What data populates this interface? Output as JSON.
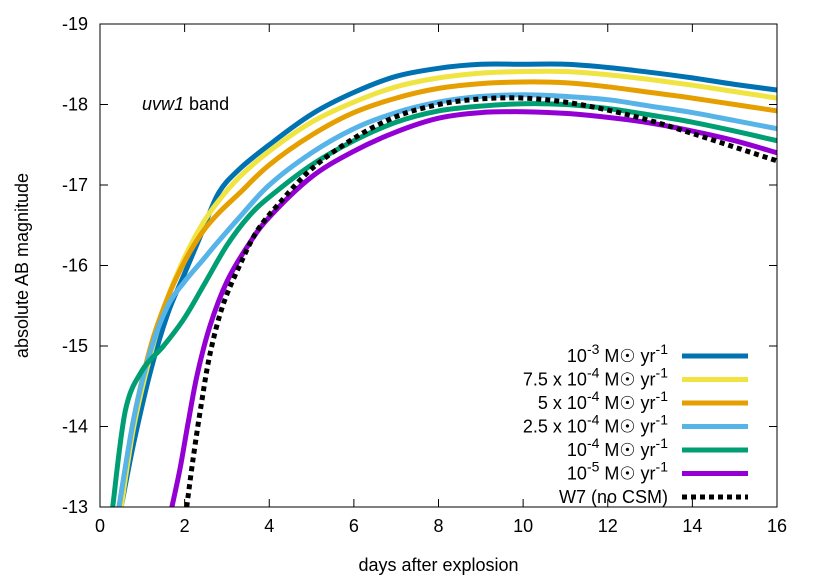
{
  "chart_data": {
    "type": "line",
    "title": "",
    "xlabel": "days after explosion",
    "ylabel": "absolute AB magnitude",
    "xlim": [
      0,
      16
    ],
    "ylim": [
      -13,
      -19
    ],
    "y_inverted": true,
    "grid": false,
    "legend_position": "bottom-right",
    "x_ticks": [
      0,
      2,
      4,
      6,
      8,
      10,
      12,
      14,
      16
    ],
    "y_ticks": [
      -13,
      -14,
      -15,
      -16,
      -17,
      -18,
      -19
    ],
    "annotation": {
      "italic": "uvw1",
      "text": " band"
    },
    "series": [
      {
        "label": {
          "pre": "",
          "mant": "10",
          "exp": "-3",
          "unit_pre": " M",
          "unit_sym": "☉",
          "unit_post": " yr",
          "unit_exp": "-1"
        },
        "color": "#0072b2",
        "dash": "solid",
        "x": [
          0.5,
          0.8,
          1.2,
          1.6,
          2.0,
          2.4,
          2.8,
          3.3,
          4.0,
          5.0,
          6.0,
          7.0,
          8.0,
          9.0,
          10.0,
          11.0,
          12.0,
          13.0,
          14.0,
          15.0,
          16.0
        ],
        "y": [
          -13.0,
          -13.8,
          -14.7,
          -15.4,
          -15.9,
          -16.4,
          -16.9,
          -17.2,
          -17.5,
          -17.88,
          -18.15,
          -18.35,
          -18.45,
          -18.5,
          -18.5,
          -18.5,
          -18.46,
          -18.4,
          -18.33,
          -18.25,
          -18.18
        ]
      },
      {
        "label": {
          "pre": "7.5 x ",
          "mant": "10",
          "exp": "-4",
          "unit_pre": " M",
          "unit_sym": "☉",
          "unit_post": " yr",
          "unit_exp": "-1"
        },
        "color": "#f0e442",
        "dash": "solid",
        "x": [
          0.5,
          0.8,
          1.2,
          1.6,
          2.0,
          2.4,
          2.8,
          3.3,
          4.0,
          5.0,
          6.0,
          7.0,
          8.0,
          9.0,
          10.0,
          11.0,
          12.0,
          13.0,
          14.0,
          15.0,
          16.0
        ],
        "y": [
          -13.0,
          -14.0,
          -14.9,
          -15.6,
          -16.1,
          -16.5,
          -16.8,
          -17.1,
          -17.42,
          -17.78,
          -18.03,
          -18.22,
          -18.33,
          -18.39,
          -18.41,
          -18.41,
          -18.37,
          -18.31,
          -18.24,
          -18.16,
          -18.08
        ]
      },
      {
        "label": {
          "pre": "5 x ",
          "mant": "10",
          "exp": "-4",
          "unit_pre": " M",
          "unit_sym": "☉",
          "unit_post": " yr",
          "unit_exp": "-1"
        },
        "color": "#e69f00",
        "dash": "solid",
        "x": [
          0.45,
          0.8,
          1.2,
          1.6,
          2.0,
          2.4,
          2.8,
          3.3,
          4.0,
          5.0,
          6.0,
          7.0,
          8.0,
          9.0,
          10.0,
          11.0,
          12.0,
          13.0,
          14.0,
          15.0,
          16.0
        ],
        "y": [
          -13.0,
          -14.1,
          -15.0,
          -15.6,
          -16.05,
          -16.4,
          -16.65,
          -16.9,
          -17.25,
          -17.62,
          -17.9,
          -18.08,
          -18.2,
          -18.26,
          -18.28,
          -18.27,
          -18.22,
          -18.15,
          -18.08,
          -18.0,
          -17.92
        ]
      },
      {
        "label": {
          "pre": "2.5 x ",
          "mant": "10",
          "exp": "-4",
          "unit_pre": " M",
          "unit_sym": "☉",
          "unit_post": " yr",
          "unit_exp": "-1"
        },
        "color": "#56b4e9",
        "dash": "solid",
        "x": [
          0.45,
          0.8,
          1.2,
          1.6,
          2.0,
          2.4,
          2.8,
          3.3,
          4.0,
          5.0,
          6.0,
          7.0,
          8.0,
          9.0,
          10.0,
          11.0,
          12.0,
          13.0,
          14.0,
          15.0,
          16.0
        ],
        "y": [
          -13.0,
          -14.1,
          -14.95,
          -15.5,
          -15.8,
          -16.05,
          -16.3,
          -16.6,
          -17.0,
          -17.4,
          -17.7,
          -17.9,
          -18.03,
          -18.1,
          -18.12,
          -18.1,
          -18.06,
          -17.98,
          -17.9,
          -17.8,
          -17.7
        ]
      },
      {
        "label": {
          "pre": "",
          "mant": "10",
          "exp": "-4",
          "unit_pre": " M",
          "unit_sym": "☉",
          "unit_post": " yr",
          "unit_exp": "-1"
        },
        "color": "#009e73",
        "dash": "solid",
        "x": [
          0.3,
          0.6,
          1.0,
          1.5,
          2.0,
          2.5,
          3.0,
          3.5,
          4.0,
          5.0,
          6.0,
          7.0,
          8.0,
          9.0,
          10.0,
          11.0,
          12.0,
          13.0,
          14.0,
          15.0,
          16.0
        ],
        "y": [
          -13.0,
          -14.2,
          -14.7,
          -15.0,
          -15.35,
          -15.8,
          -16.25,
          -16.6,
          -16.85,
          -17.25,
          -17.55,
          -17.78,
          -17.92,
          -17.98,
          -18.01,
          -18.0,
          -17.95,
          -17.87,
          -17.78,
          -17.67,
          -17.55
        ]
      },
      {
        "label": {
          "pre": "",
          "mant": "10",
          "exp": "-5",
          "unit_pre": " M",
          "unit_sym": "☉",
          "unit_post": " yr",
          "unit_exp": "-1"
        },
        "color": "#9400d3",
        "dash": "solid",
        "x": [
          1.7,
          1.9,
          2.1,
          2.3,
          2.6,
          3.0,
          3.5,
          4.0,
          5.0,
          6.0,
          7.0,
          8.0,
          9.0,
          10.0,
          11.0,
          12.0,
          13.0,
          14.0,
          15.0,
          16.0
        ],
        "y": [
          -13.0,
          -13.5,
          -14.1,
          -14.65,
          -15.25,
          -15.8,
          -16.25,
          -16.6,
          -17.1,
          -17.42,
          -17.66,
          -17.83,
          -17.9,
          -17.91,
          -17.89,
          -17.84,
          -17.77,
          -17.67,
          -17.55,
          -17.4
        ]
      },
      {
        "label": {
          "pre": "W7 (no CSM)",
          "mant": "",
          "exp": "",
          "unit_pre": "",
          "unit_sym": "",
          "unit_post": "",
          "unit_exp": ""
        },
        "color": "#000000",
        "dash": "dotted",
        "x": [
          2.05,
          2.2,
          2.4,
          2.6,
          2.9,
          3.3,
          3.7,
          4.2,
          5.0,
          6.0,
          7.0,
          8.0,
          9.0,
          10.0,
          11.0,
          12.0,
          13.0,
          14.0,
          15.0,
          16.0
        ],
        "y": [
          -13.0,
          -13.6,
          -14.3,
          -14.9,
          -15.5,
          -16.0,
          -16.42,
          -16.75,
          -17.2,
          -17.58,
          -17.85,
          -18.0,
          -18.07,
          -18.08,
          -18.03,
          -17.93,
          -17.8,
          -17.64,
          -17.47,
          -17.3
        ]
      }
    ]
  }
}
